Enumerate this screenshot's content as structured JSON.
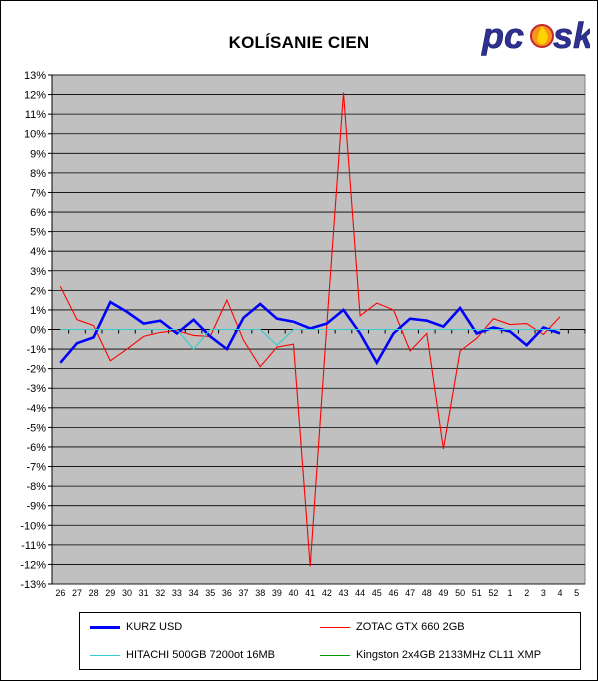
{
  "brand": "pcask",
  "chart_data": {
    "type": "line",
    "title": "KOLÍSANIE CIEN",
    "xlabel": "",
    "ylabel": "",
    "ylim": [
      -13,
      13
    ],
    "y_ticks": [
      "13%",
      "12%",
      "11%",
      "10%",
      "9%",
      "8%",
      "7%",
      "6%",
      "5%",
      "4%",
      "3%",
      "2%",
      "1%",
      "0%",
      "-1%",
      "-2%",
      "-3%",
      "-4%",
      "-5%",
      "-6%",
      "-7%",
      "-8%",
      "-9%",
      "-10%",
      "-11%",
      "-12%",
      "-13%"
    ],
    "categories": [
      "26",
      "27",
      "28",
      "29",
      "30",
      "31",
      "32",
      "33",
      "34",
      "35",
      "36",
      "37",
      "38",
      "39",
      "40",
      "41",
      "42",
      "43",
      "44",
      "45",
      "46",
      "47",
      "48",
      "49",
      "50",
      "51",
      "52",
      "1",
      "2",
      "3",
      "4",
      "5"
    ],
    "grid": true,
    "background": "#c0c0c0",
    "legend_position": "bottom",
    "series": [
      {
        "name": "KURZ USD",
        "color": "#0000ff",
        "width": 2.6,
        "values": [
          -1.7,
          -0.7,
          -0.4,
          1.4,
          0.9,
          0.3,
          0.45,
          -0.2,
          0.5,
          -0.35,
          -1.0,
          0.6,
          1.3,
          0.55,
          0.4,
          0.05,
          0.3,
          1.0,
          -0.2,
          -1.7,
          -0.2,
          0.55,
          0.45,
          0.15,
          1.1,
          -0.2,
          0.1,
          -0.1,
          -0.8,
          0.1,
          -0.2,
          null
        ]
      },
      {
        "name": "ZOTAC GTX 660 2GB",
        "color": "#ff0000",
        "width": 1.1,
        "values": [
          2.2,
          0.5,
          0.2,
          -1.6,
          -1.0,
          -0.35,
          -0.15,
          -0.05,
          -0.3,
          -0.35,
          1.5,
          -0.55,
          -1.9,
          -0.9,
          -0.75,
          -12.1,
          0.2,
          12.1,
          0.7,
          1.35,
          1.0,
          -1.1,
          -0.2,
          -6.1,
          -1.1,
          -0.45,
          0.55,
          0.25,
          0.3,
          -0.25,
          0.65,
          null
        ]
      },
      {
        "name": "HITACHI 500GB 7200ot 16MB",
        "color": "#33cccc",
        "width": 1.1,
        "values": [
          0.0,
          0.0,
          0.0,
          0.0,
          0.0,
          0.0,
          0.0,
          0.0,
          -1.0,
          0.0,
          0.0,
          0.0,
          0.0,
          -0.8,
          0.0,
          0.0,
          0.0,
          0.0,
          0.0,
          0.0,
          0.0,
          0.0,
          0.0,
          0.0,
          0.0,
          0.0,
          0.0,
          0.0,
          0.0,
          0.0,
          0.0,
          null
        ]
      },
      {
        "name": "Kingston 2x4GB 2133MHz CL11 XMP",
        "color": "#009900",
        "width": 1.1,
        "values": [
          null,
          null,
          null,
          null,
          null,
          null,
          null,
          null,
          null,
          null,
          null,
          null,
          null,
          null,
          null,
          null,
          null,
          null,
          null,
          null,
          null,
          null,
          null,
          null,
          null,
          null,
          null,
          null,
          null,
          null,
          null,
          null
        ]
      }
    ]
  }
}
